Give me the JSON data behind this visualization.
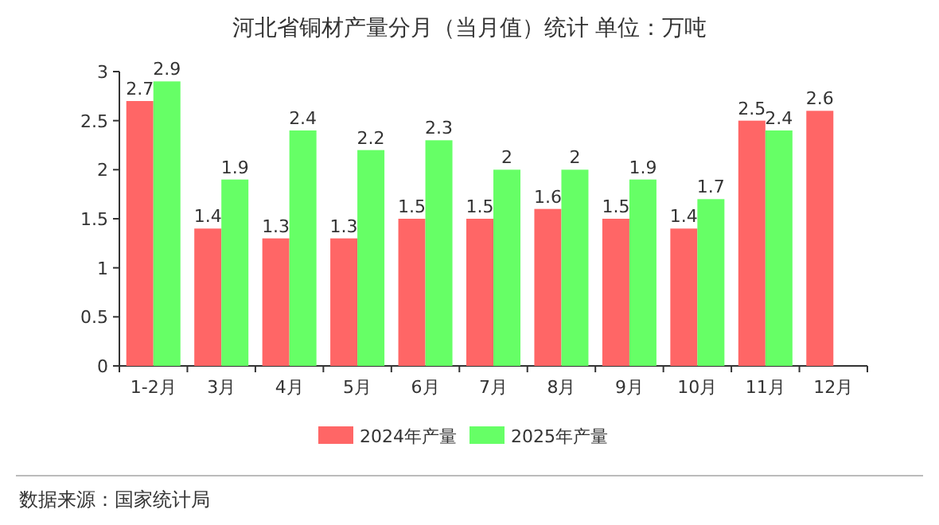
{
  "chart_data": {
    "type": "bar",
    "title": "河北省铜材产量分月（当月值）统计  单位：万吨",
    "categories": [
      "1-2月",
      "3月",
      "4月",
      "5月",
      "6月",
      "7月",
      "8月",
      "9月",
      "10月",
      "11月",
      "12月"
    ],
    "series": [
      {
        "name": "2024年产量",
        "color": "#ff6666",
        "values": [
          2.7,
          1.4,
          1.3,
          1.3,
          1.5,
          1.5,
          1.6,
          1.5,
          1.4,
          2.5,
          2.6
        ]
      },
      {
        "name": "2025年产量",
        "color": "#66ff66",
        "values": [
          2.9,
          1.9,
          2.4,
          2.2,
          2.3,
          2,
          2,
          1.9,
          1.7,
          2.4,
          null
        ]
      }
    ],
    "ylim": [
      0,
      3
    ],
    "yticks": [
      0,
      0.5,
      1,
      1.5,
      2,
      2.5,
      3
    ],
    "grid": false,
    "legend": "bottom",
    "data_labels": true,
    "annotations": [
      "数据来源：国家统计局"
    ]
  }
}
